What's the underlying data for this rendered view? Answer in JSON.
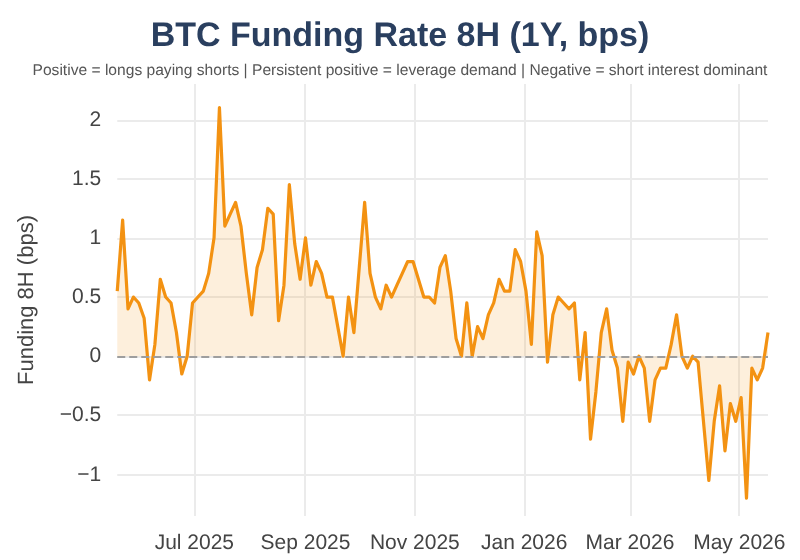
{
  "chart_data": {
    "type": "area",
    "title": "BTC Funding Rate 8H (1Y, bps)",
    "subtitle": "Positive = longs paying shorts | Persistent positive = leverage demand | Negative = short interest dominant",
    "ylabel": "Funding 8H (bps)",
    "x": [
      "2025-05-19",
      "2025-05-22",
      "2025-05-25",
      "2025-05-28",
      "2025-05-31",
      "2025-06-03",
      "2025-06-06",
      "2025-06-09",
      "2025-06-12",
      "2025-06-15",
      "2025-06-18",
      "2025-06-21",
      "2025-06-24",
      "2025-06-27",
      "2025-06-30",
      "2025-07-03",
      "2025-07-06",
      "2025-07-09",
      "2025-07-12",
      "2025-07-15",
      "2025-07-18",
      "2025-07-21",
      "2025-07-24",
      "2025-07-27",
      "2025-07-30",
      "2025-08-02",
      "2025-08-05",
      "2025-08-08",
      "2025-08-11",
      "2025-08-14",
      "2025-08-17",
      "2025-08-20",
      "2025-08-23",
      "2025-08-26",
      "2025-08-29",
      "2025-09-01",
      "2025-09-04",
      "2025-09-07",
      "2025-09-10",
      "2025-09-13",
      "2025-09-16",
      "2025-09-19",
      "2025-09-22",
      "2025-09-25",
      "2025-09-28",
      "2025-10-01",
      "2025-10-04",
      "2025-10-07",
      "2025-10-10",
      "2025-10-13",
      "2025-10-16",
      "2025-10-19",
      "2025-10-22",
      "2025-10-25",
      "2025-10-28",
      "2025-10-31",
      "2025-11-03",
      "2025-11-06",
      "2025-11-09",
      "2025-11-12",
      "2025-11-15",
      "2025-11-18",
      "2025-11-21",
      "2025-11-24",
      "2025-11-27",
      "2025-11-30",
      "2025-12-03",
      "2025-12-06",
      "2025-12-09",
      "2025-12-12",
      "2025-12-15",
      "2025-12-18",
      "2025-12-21",
      "2025-12-24",
      "2025-12-27",
      "2025-12-30",
      "2026-01-02",
      "2026-01-05",
      "2026-01-08",
      "2026-01-11",
      "2026-01-14",
      "2026-01-17",
      "2026-01-20",
      "2026-01-23",
      "2026-01-26",
      "2026-01-29",
      "2026-02-01",
      "2026-02-04",
      "2026-02-07",
      "2026-02-10",
      "2026-02-13",
      "2026-02-16",
      "2026-02-19",
      "2026-02-22",
      "2026-02-25",
      "2026-02-28",
      "2026-03-03",
      "2026-03-06",
      "2026-03-09",
      "2026-03-12",
      "2026-03-15",
      "2026-03-18",
      "2026-03-21",
      "2026-03-24",
      "2026-03-27",
      "2026-03-30",
      "2026-04-02",
      "2026-04-05",
      "2026-04-08",
      "2026-04-11",
      "2026-04-14",
      "2026-04-17",
      "2026-04-20",
      "2026-04-23",
      "2026-04-26",
      "2026-04-29",
      "2026-05-02",
      "2026-05-05",
      "2026-05-08",
      "2026-05-11",
      "2026-05-14",
      "2026-05-17"
    ],
    "series": [
      {
        "color": "#f39212",
        "values": [
          0.55,
          1.15,
          0.4,
          0.5,
          0.45,
          0.32,
          -0.2,
          0.1,
          0.65,
          0.5,
          0.45,
          0.2,
          -0.15,
          0.0,
          0.45,
          0.5,
          0.55,
          0.7,
          1.0,
          2.1,
          1.1,
          1.2,
          1.3,
          1.1,
          0.7,
          0.35,
          0.75,
          0.9,
          1.25,
          1.2,
          0.3,
          0.6,
          1.45,
          0.95,
          0.65,
          1.0,
          0.6,
          0.8,
          0.7,
          0.5,
          0.5,
          0.25,
          0.0,
          0.5,
          0.2,
          0.75,
          1.3,
          0.7,
          0.5,
          0.4,
          0.6,
          0.5,
          0.6,
          0.7,
          0.8,
          0.8,
          0.65,
          0.5,
          0.5,
          0.45,
          0.75,
          0.85,
          0.55,
          0.15,
          0.0,
          0.45,
          0.0,
          0.25,
          0.15,
          0.35,
          0.45,
          0.65,
          0.55,
          0.55,
          0.9,
          0.8,
          0.55,
          0.1,
          1.05,
          0.85,
          -0.05,
          0.35,
          0.5,
          0.45,
          0.4,
          0.45,
          -0.2,
          0.2,
          -0.7,
          -0.3,
          0.2,
          0.4,
          0.05,
          -0.1,
          -0.55,
          -0.05,
          -0.15,
          0.0,
          -0.1,
          -0.55,
          -0.2,
          -0.1,
          -0.1,
          0.1,
          0.35,
          0.0,
          -0.1,
          0.0,
          -0.05,
          -0.55,
          -1.05,
          -0.55,
          -0.25,
          -0.8,
          -0.4,
          -0.55,
          -0.35,
          -1.2,
          -0.1,
          -0.2,
          -0.1,
          0.2
        ]
      }
    ],
    "xlim": [
      "2025-05-19",
      "2026-05-17"
    ],
    "xticks": [
      {
        "value": "2025-07-01",
        "label": "Jul 2025"
      },
      {
        "value": "2025-09-01",
        "label": "Sep 2025"
      },
      {
        "value": "2025-11-01",
        "label": "Nov 2025"
      },
      {
        "value": "2026-01-01",
        "label": "Jan 2026"
      },
      {
        "value": "2026-03-01",
        "label": "Mar 2026"
      },
      {
        "value": "2026-05-01",
        "label": "May 2026"
      }
    ],
    "ylim": [
      -1.35,
      2.3
    ],
    "yticks": [
      {
        "value": -1,
        "label": "−1"
      },
      {
        "value": -0.5,
        "label": "−0.5"
      },
      0,
      0.5,
      1,
      1.5,
      2
    ],
    "ref_lines": [
      {
        "axis": "y",
        "value": 0,
        "color": "#9e9e9e",
        "line_style": "dashed"
      }
    ],
    "grid": true,
    "marker": "none",
    "line_style": "solid"
  }
}
